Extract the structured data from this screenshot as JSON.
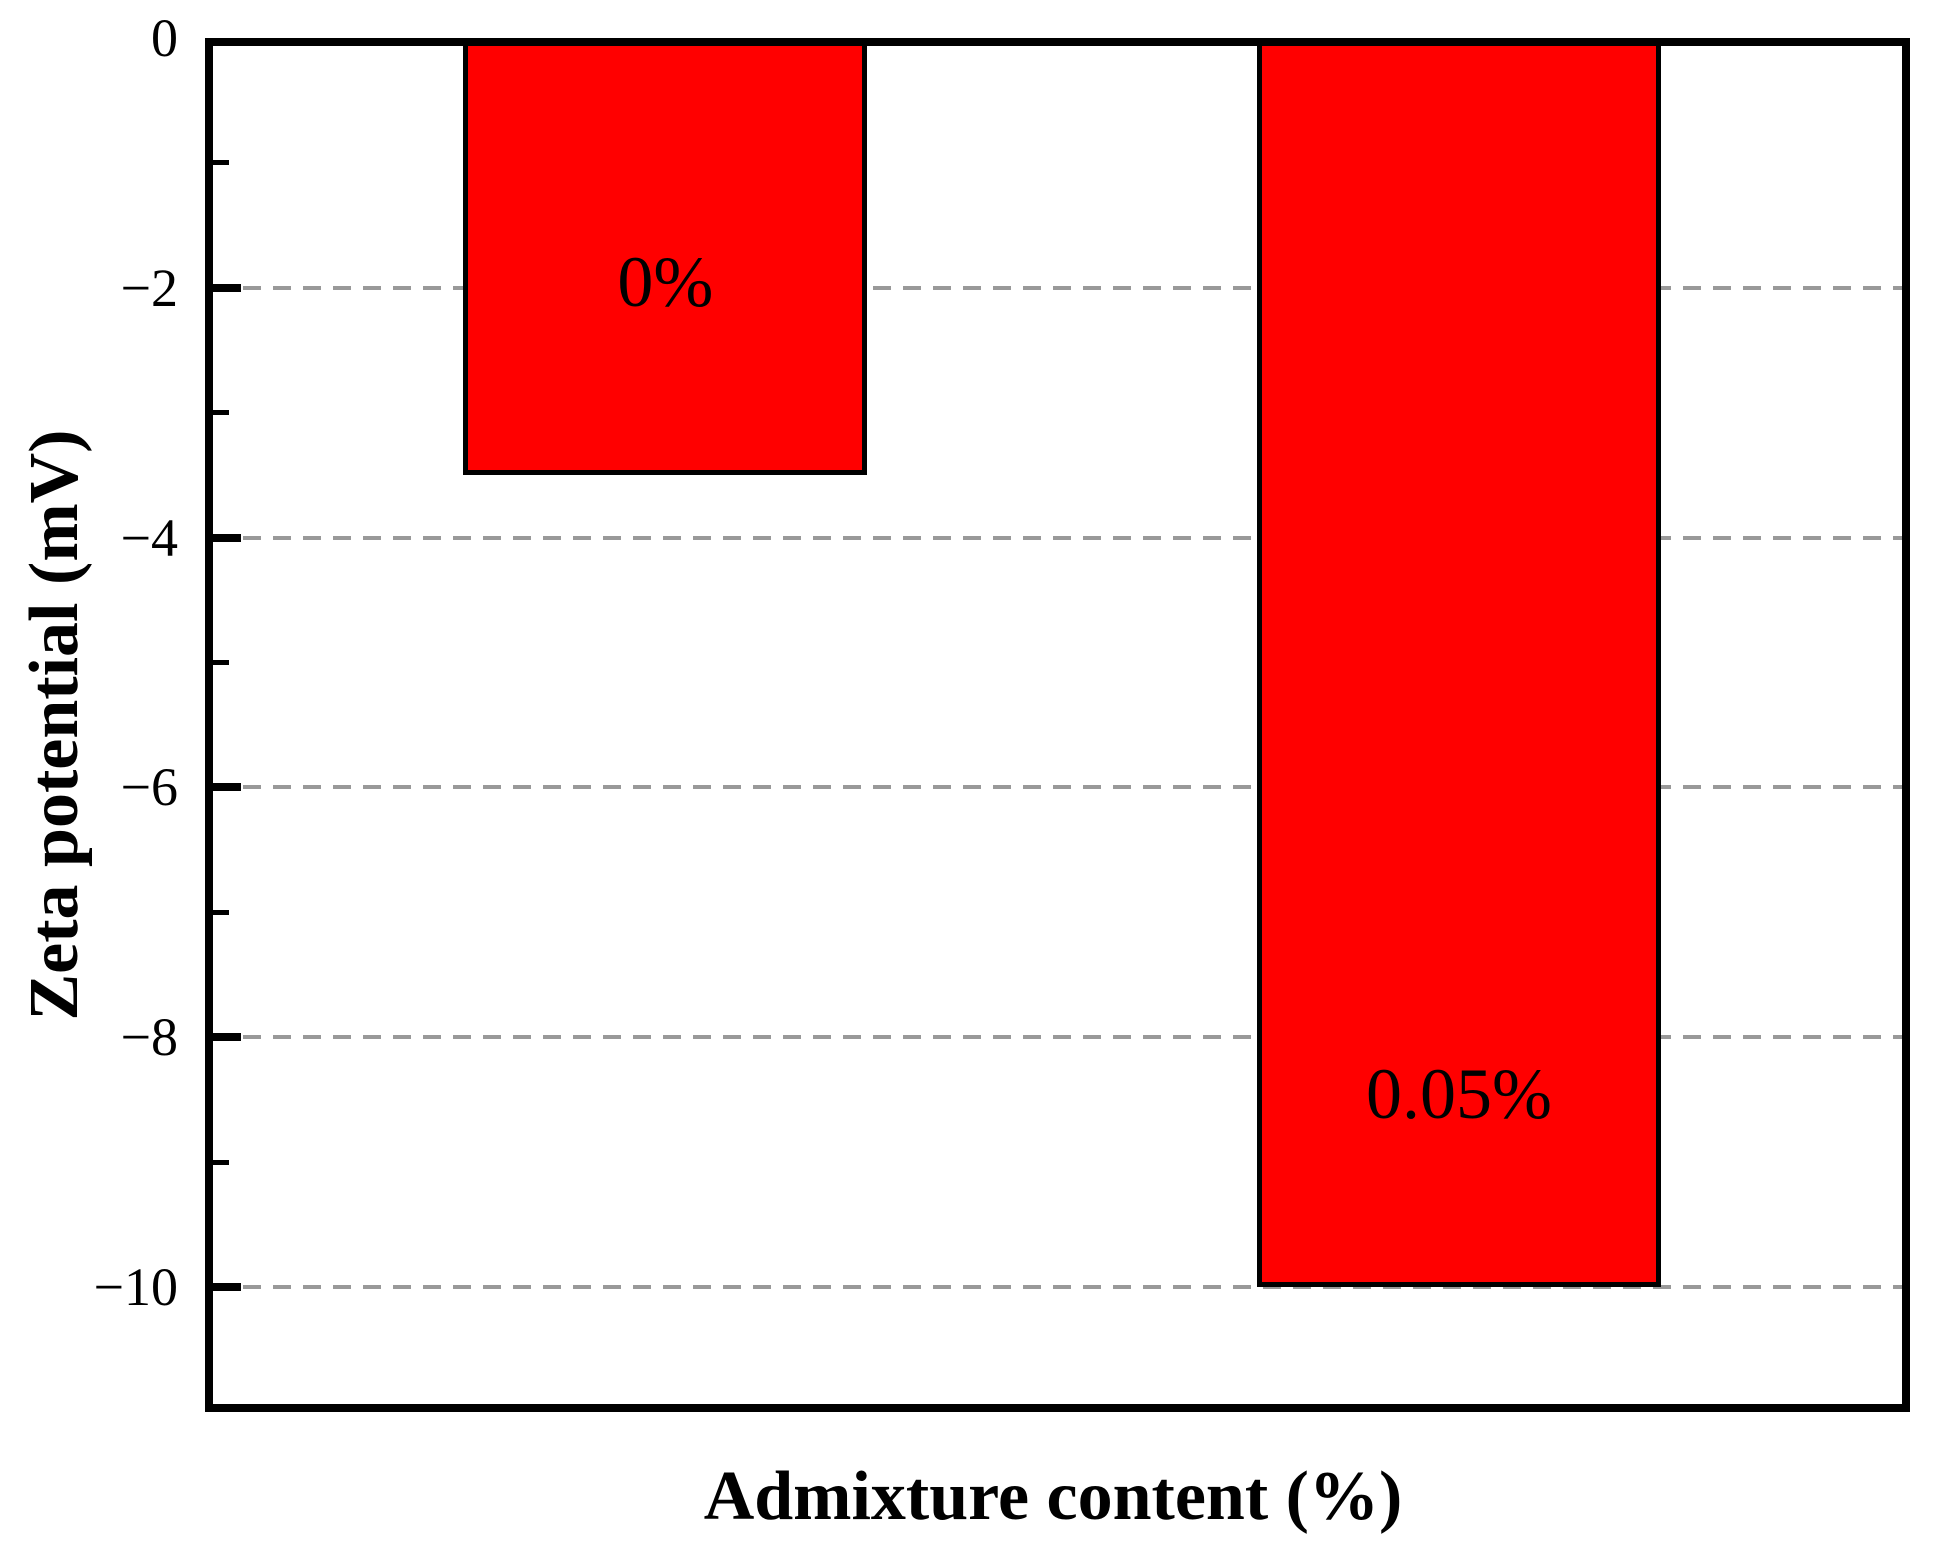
{
  "page": {
    "background": "#ffffff"
  },
  "chart_data": {
    "type": "bar",
    "title": "",
    "xlabel": "Admixture content (%)",
    "ylabel": "Zeta potential (mV)",
    "categories": [
      "0%",
      "0.05%"
    ],
    "values": [
      -3.5,
      -10
    ],
    "bar_labels": [
      "0%",
      "0.05%"
    ],
    "ylim": [
      -11,
      0
    ],
    "yticks": [
      {
        "value": 0,
        "label": "0"
      },
      {
        "value": -2,
        "label": "−2"
      },
      {
        "value": -4,
        "label": "−4"
      },
      {
        "value": -6,
        "label": "−6"
      },
      {
        "value": -8,
        "label": "−8"
      },
      {
        "value": -10,
        "label": "−10"
      }
    ],
    "minor_yticks": [
      -1,
      -3,
      -5,
      -7,
      -9
    ],
    "gridlines": [
      -2,
      -4,
      -6,
      -8,
      -10
    ],
    "colors": {
      "bar_fill": "#ff0000",
      "bar_edge": "#000000",
      "grid": "#999999",
      "axis": "#000000",
      "text": "#000000"
    },
    "layout": {
      "grid_style": "dashed",
      "legend": "none",
      "bar_center_fracs": [
        0.27,
        0.7355
      ],
      "bar_width_frac": 0.237
    }
  }
}
